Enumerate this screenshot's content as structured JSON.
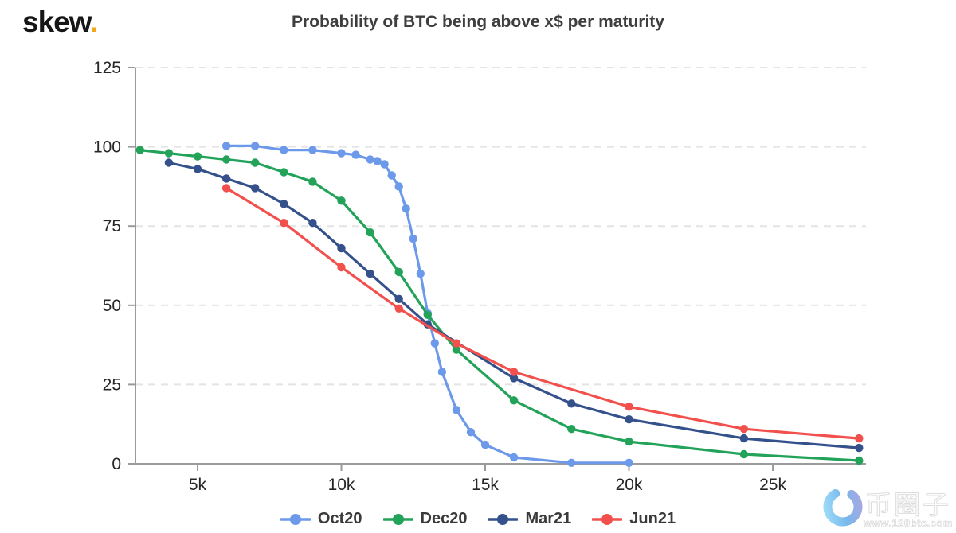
{
  "brand": {
    "name": "skew",
    "dot": "."
  },
  "header": {
    "title": "Probability of BTC being above x$ per maturity"
  },
  "watermark": {
    "site_name": "币圈子",
    "url": "www.120btc.com"
  },
  "colors": {
    "accent_orange": "#F2A71B",
    "axis": "#9B9B9B",
    "grid": "#E4E4E4",
    "tick_label": "#262626",
    "title_text": "#3E3E3E",
    "legend_text": "#3A3A3A"
  },
  "chart_data": {
    "type": "line",
    "title": "Probability of BTC being above x$ per maturity",
    "xlabel": "",
    "ylabel": "",
    "x_unit": "strike price, thousands of USD",
    "y_unit": "probability, %",
    "x_domain": [
      2.84,
      28.24
    ],
    "y_domain": [
      0,
      125
    ],
    "grid": "horizontal-dashed",
    "legend_position": "bottom",
    "x_ticks": [
      {
        "value": 5,
        "label": "5k"
      },
      {
        "value": 10,
        "label": "10k"
      },
      {
        "value": 15,
        "label": "15k"
      },
      {
        "value": 20,
        "label": "20k"
      },
      {
        "value": 25,
        "label": "25k"
      }
    ],
    "y_ticks": [
      {
        "value": 0,
        "label": "0"
      },
      {
        "value": 25,
        "label": "25"
      },
      {
        "value": 50,
        "label": "50"
      },
      {
        "value": 75,
        "label": "75"
      },
      {
        "value": 100,
        "label": "100"
      },
      {
        "value": 125,
        "label": "125"
      }
    ],
    "series": [
      {
        "name": "Oct20",
        "color": "#6C99EA",
        "points": [
          [
            6,
            100.3
          ],
          [
            7,
            100.3
          ],
          [
            8,
            99
          ],
          [
            9,
            99
          ],
          [
            10,
            98
          ],
          [
            10.5,
            97.5
          ],
          [
            11,
            96
          ],
          [
            11.25,
            95.5
          ],
          [
            11.5,
            94.5
          ],
          [
            11.75,
            91
          ],
          [
            12,
            87.5
          ],
          [
            12.25,
            80.5
          ],
          [
            12.5,
            71
          ],
          [
            12.75,
            60
          ],
          [
            13,
            47.5
          ],
          [
            13.25,
            38
          ],
          [
            13.5,
            29
          ],
          [
            14,
            17
          ],
          [
            14.5,
            10
          ],
          [
            15,
            6
          ],
          [
            16,
            2
          ],
          [
            18,
            0.3
          ],
          [
            20,
            0.3
          ]
        ]
      },
      {
        "name": "Dec20",
        "color": "#23A35A",
        "points": [
          [
            3,
            99
          ],
          [
            4,
            98
          ],
          [
            5,
            97
          ],
          [
            6,
            96
          ],
          [
            7,
            95
          ],
          [
            8,
            92
          ],
          [
            9,
            89
          ],
          [
            10,
            83
          ],
          [
            11,
            73
          ],
          [
            12,
            60.5
          ],
          [
            13,
            47
          ],
          [
            14,
            36
          ],
          [
            16,
            20
          ],
          [
            18,
            11
          ],
          [
            20,
            7
          ],
          [
            24,
            3
          ],
          [
            28,
            1
          ]
        ]
      },
      {
        "name": "Mar21",
        "color": "#34518C",
        "points": [
          [
            4,
            95
          ],
          [
            5,
            93
          ],
          [
            6,
            90
          ],
          [
            7,
            87
          ],
          [
            8,
            82
          ],
          [
            9,
            76
          ],
          [
            10,
            68
          ],
          [
            11,
            60
          ],
          [
            12,
            52
          ],
          [
            13,
            44
          ],
          [
            16,
            27
          ],
          [
            18,
            19
          ],
          [
            20,
            14
          ],
          [
            24,
            8
          ],
          [
            28,
            5
          ]
        ]
      },
      {
        "name": "Jun21",
        "color": "#F2504D",
        "points": [
          [
            6,
            87
          ],
          [
            8,
            76
          ],
          [
            10,
            62
          ],
          [
            12,
            49
          ],
          [
            14,
            38
          ],
          [
            16,
            29
          ],
          [
            20,
            18
          ],
          [
            24,
            11
          ],
          [
            28,
            8
          ]
        ]
      }
    ]
  }
}
